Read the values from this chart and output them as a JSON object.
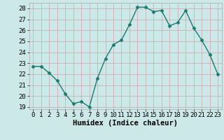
{
  "x": [
    0,
    1,
    2,
    3,
    4,
    5,
    6,
    7,
    8,
    9,
    10,
    11,
    12,
    13,
    14,
    15,
    16,
    17,
    18,
    19,
    20,
    21,
    22,
    23
  ],
  "y": [
    22.7,
    22.7,
    22.1,
    21.4,
    20.2,
    19.3,
    19.5,
    19.0,
    21.6,
    23.4,
    24.7,
    25.1,
    26.5,
    28.1,
    28.1,
    27.7,
    27.8,
    26.4,
    26.7,
    27.8,
    26.2,
    25.1,
    23.8,
    22.0
  ],
  "line_color": "#1a7a6e",
  "marker": "D",
  "marker_size": 2.5,
  "bg_color": "#cce8e8",
  "grid_color": "#c8a8a8",
  "xlabel": "Humidex (Indice chaleur)",
  "xlim": [
    -0.5,
    23.5
  ],
  "ylim": [
    18.8,
    28.5
  ],
  "yticks": [
    19,
    20,
    21,
    22,
    23,
    24,
    25,
    26,
    27,
    28
  ],
  "xticks": [
    0,
    1,
    2,
    3,
    4,
    5,
    6,
    7,
    8,
    9,
    10,
    11,
    12,
    13,
    14,
    15,
    16,
    17,
    18,
    19,
    20,
    21,
    22,
    23
  ],
  "tick_fontsize": 6.5,
  "xlabel_fontsize": 7.5,
  "linewidth": 1.0
}
